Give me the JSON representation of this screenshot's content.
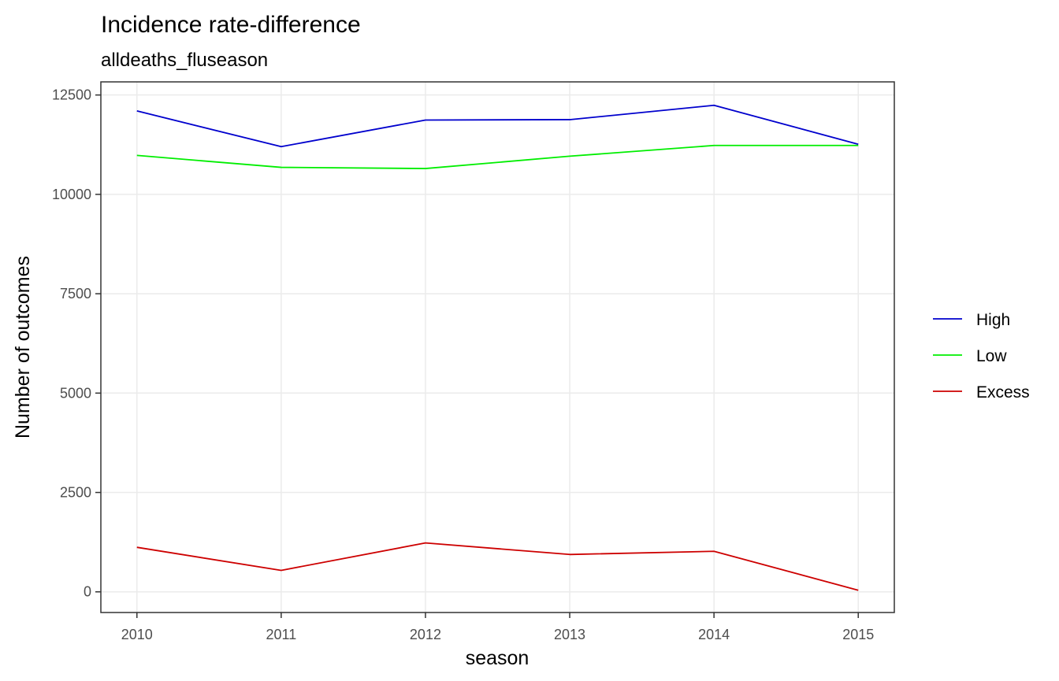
{
  "chart_data": {
    "type": "line",
    "title": "Incidence rate-difference",
    "subtitle": "alldeaths_fluseason",
    "xlabel": "season",
    "ylabel": "Number of outcomes",
    "x": [
      2010,
      2011,
      2012,
      2013,
      2014,
      2015
    ],
    "x_tick_labels": [
      "2010",
      "2011",
      "2012",
      "2013",
      "2014",
      "2015"
    ],
    "y_ticks": [
      0,
      2500,
      5000,
      7500,
      10000,
      12500
    ],
    "y_tick_labels": [
      "0",
      "2500",
      "5000",
      "7500",
      "10000",
      "12500"
    ],
    "xlim": [
      2009.75,
      2015.25
    ],
    "ylim": [
      -520,
      12830
    ],
    "grid": true,
    "legend_position": "right",
    "series": [
      {
        "name": "High",
        "color": "#0000cd",
        "values": [
          12100,
          11200,
          11870,
          11880,
          12240,
          11260
        ]
      },
      {
        "name": "Low",
        "color": "#00ee00",
        "values": [
          10980,
          10680,
          10650,
          10960,
          11230,
          11230
        ]
      },
      {
        "name": "Excess",
        "color": "#cd0000",
        "values": [
          1120,
          540,
          1230,
          940,
          1020,
          40
        ]
      }
    ]
  }
}
